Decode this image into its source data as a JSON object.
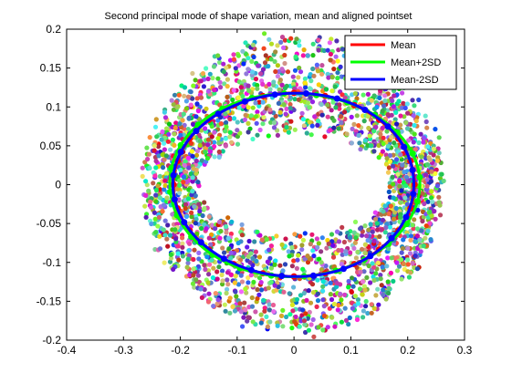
{
  "chart_data": {
    "type": "scatter",
    "title": "Second principal mode of shape variation, mean and aligned pointset",
    "xlabel": "",
    "ylabel": "",
    "xlim": [
      -0.4,
      0.3
    ],
    "ylim": [
      -0.2,
      0.2
    ],
    "xticks": [
      -0.4,
      -0.3,
      -0.2,
      -0.1,
      0,
      0.1,
      0.2,
      0.3
    ],
    "yticks": [
      -0.2,
      -0.15,
      -0.1,
      -0.05,
      0,
      0.05,
      0.1,
      0.15,
      0.2
    ],
    "xtick_labels": [
      "-0.4",
      "-0.3",
      "-0.2",
      "-0.1",
      "0",
      "0.1",
      "0.2",
      "0.3"
    ],
    "ytick_labels": [
      "-0.2",
      "-0.15",
      "-0.1",
      "-0.05",
      "0",
      "0.05",
      "0.1",
      "0.15",
      "0.2"
    ],
    "grid": false,
    "legend_position": "top-right",
    "aligned_pointset": {
      "shape": "ring",
      "center": [
        0.0,
        0.0
      ],
      "inner_radii": [
        0.175,
        0.07
      ],
      "outer_radii": [
        0.26,
        0.19
      ],
      "approx_point_count": 2800,
      "colors": "many random colors"
    },
    "series": [
      {
        "name": "Mean",
        "color": "#ff0000",
        "shape": "ellipse",
        "center": [
          0.0,
          0.0
        ],
        "rx": 0.212,
        "ry": 0.118,
        "markers": 24
      },
      {
        "name": "Mean+2SD",
        "color": "#00ff00",
        "shape": "ellipse",
        "center": [
          0.0,
          0.0
        ],
        "rx": 0.22,
        "ry": 0.118,
        "markers": 24
      },
      {
        "name": "Mean-2SD",
        "color": "#0000ff",
        "shape": "ellipse",
        "center": [
          0.0,
          0.0
        ],
        "rx": 0.212,
        "ry": 0.118,
        "markers": 24
      }
    ]
  }
}
